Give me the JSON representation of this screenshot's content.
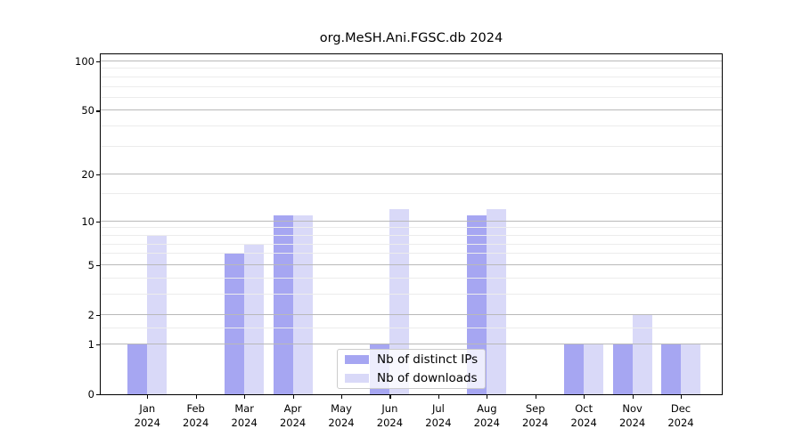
{
  "title": "org.MeSH.Ani.FGSC.db 2024",
  "chart_data": {
    "type": "bar",
    "title": "org.MeSH.Ani.FGSC.db 2024",
    "categories": [
      "Jan 2024",
      "Feb 2024",
      "Mar 2024",
      "Apr 2024",
      "May 2024",
      "Jun 2024",
      "Jul 2024",
      "Aug 2024",
      "Sep 2024",
      "Oct 2024",
      "Nov 2024",
      "Dec 2024"
    ],
    "x_tick_months": [
      "Jan",
      "Feb",
      "Mar",
      "Apr",
      "May",
      "Jun",
      "Jul",
      "Aug",
      "Sep",
      "Oct",
      "Nov",
      "Dec"
    ],
    "x_tick_year": "2024",
    "series": [
      {
        "name": "Nb of distinct IPs",
        "color": "#a6a6f2",
        "values": [
          1,
          0,
          6,
          11,
          0,
          1,
          0,
          11,
          0,
          1,
          1,
          1
        ]
      },
      {
        "name": "Nb of downloads",
        "color": "#d9d9f8",
        "values": [
          8,
          0,
          7,
          11,
          0,
          12,
          0,
          12,
          0,
          1,
          2,
          1
        ]
      }
    ],
    "xlabel": "",
    "ylabel": "",
    "y_scale": "log1p",
    "ylim": [
      0,
      110
    ],
    "y_major_ticks": [
      0,
      1,
      2,
      5,
      10,
      20,
      50,
      100
    ],
    "y_minor_gridlines": [
      1.5,
      3,
      4,
      6,
      7,
      8,
      9,
      15,
      30,
      40,
      60,
      70,
      80,
      90
    ],
    "grid": "on",
    "legend_position": "lower center"
  },
  "legend": {
    "items": [
      {
        "label": "Nb of distinct IPs",
        "color": "#a6a6f2"
      },
      {
        "label": "Nb of downloads",
        "color": "#d9d9f8"
      }
    ]
  }
}
